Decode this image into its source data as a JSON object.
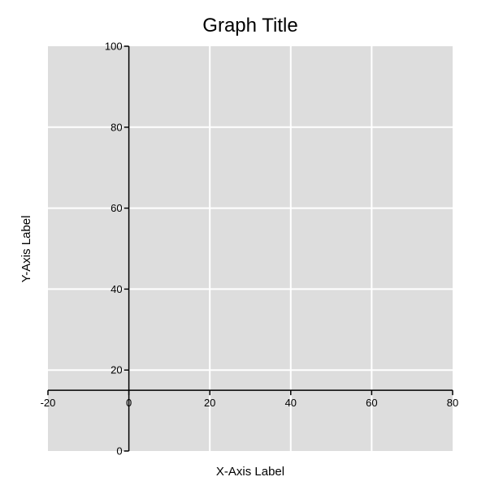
{
  "chart_data": {
    "type": "scatter",
    "title": "Graph Title",
    "xlabel": "X-Axis Label",
    "ylabel": "Y-Axis Label",
    "xlim": [
      -20,
      80
    ],
    "ylim": [
      0,
      100
    ],
    "x_ticks": [
      -20,
      0,
      20,
      40,
      60,
      80
    ],
    "y_ticks": [
      0,
      20,
      40,
      60,
      80,
      100
    ],
    "x_axis_crosses_at_y": 15,
    "y_axis_crosses_at_x": 0,
    "grid": true,
    "series": [],
    "colors": {
      "plot_background": "#dddddd",
      "grid": "#ffffff",
      "axis": "#000000"
    }
  }
}
